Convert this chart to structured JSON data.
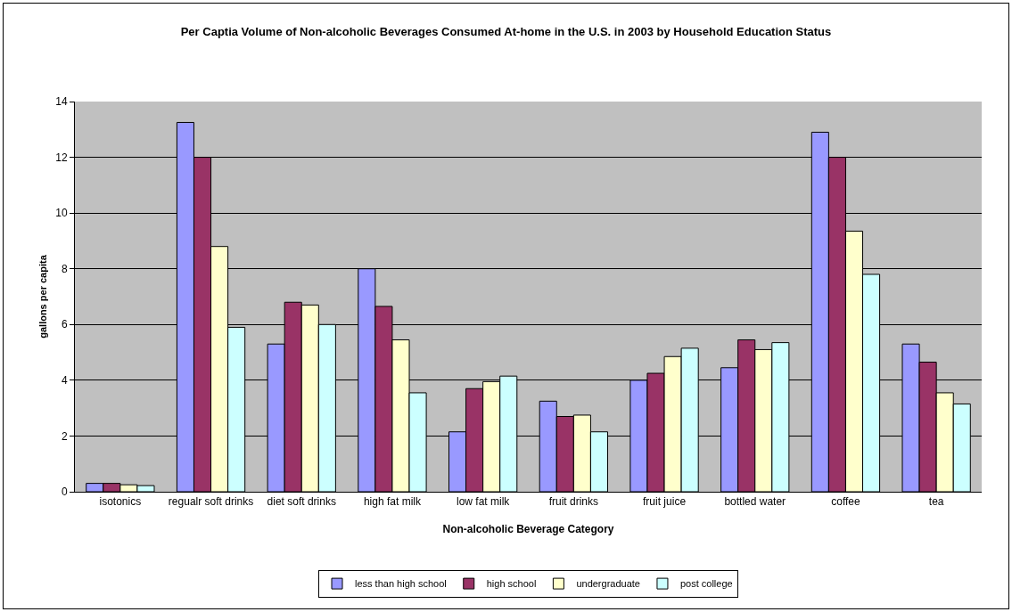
{
  "chart_data": {
    "type": "bar",
    "title": "Per Captia Volume of Non-alcoholic Beverages Consumed At-home in the U.S. in 2003 by Household Education Status",
    "xlabel": "Non-alcoholic Beverage Category",
    "ylabel": "gallons per capita",
    "categories": [
      "isotonics",
      "regualr soft drinks",
      "diet soft drinks",
      "high fat milk",
      "low fat milk",
      "fruit drinks",
      "fruit juice",
      "bottled water",
      "coffee",
      "tea"
    ],
    "series": [
      {
        "name": "less than high school",
        "color": "#9999ff",
        "values": [
          0.3,
          13.25,
          5.3,
          8.0,
          2.15,
          3.25,
          4.0,
          4.45,
          12.9,
          5.3
        ]
      },
      {
        "name": "high school",
        "color": "#993366",
        "values": [
          0.3,
          12.0,
          6.8,
          6.65,
          3.7,
          2.7,
          4.25,
          5.45,
          12.0,
          4.65
        ]
      },
      {
        "name": "undergraduate",
        "color": "#ffffcc",
        "values": [
          0.25,
          8.8,
          6.7,
          5.45,
          3.95,
          2.75,
          4.85,
          5.1,
          9.35,
          3.55
        ]
      },
      {
        "name": "post college",
        "color": "#ccffff",
        "values": [
          0.22,
          5.9,
          6.0,
          3.55,
          4.15,
          2.15,
          5.15,
          5.35,
          7.8,
          3.15
        ]
      }
    ],
    "ylim": [
      0,
      14
    ],
    "yticks": [
      0,
      2,
      4,
      6,
      8,
      10,
      12,
      14
    ],
    "grid": "y",
    "legend": "bottom"
  }
}
